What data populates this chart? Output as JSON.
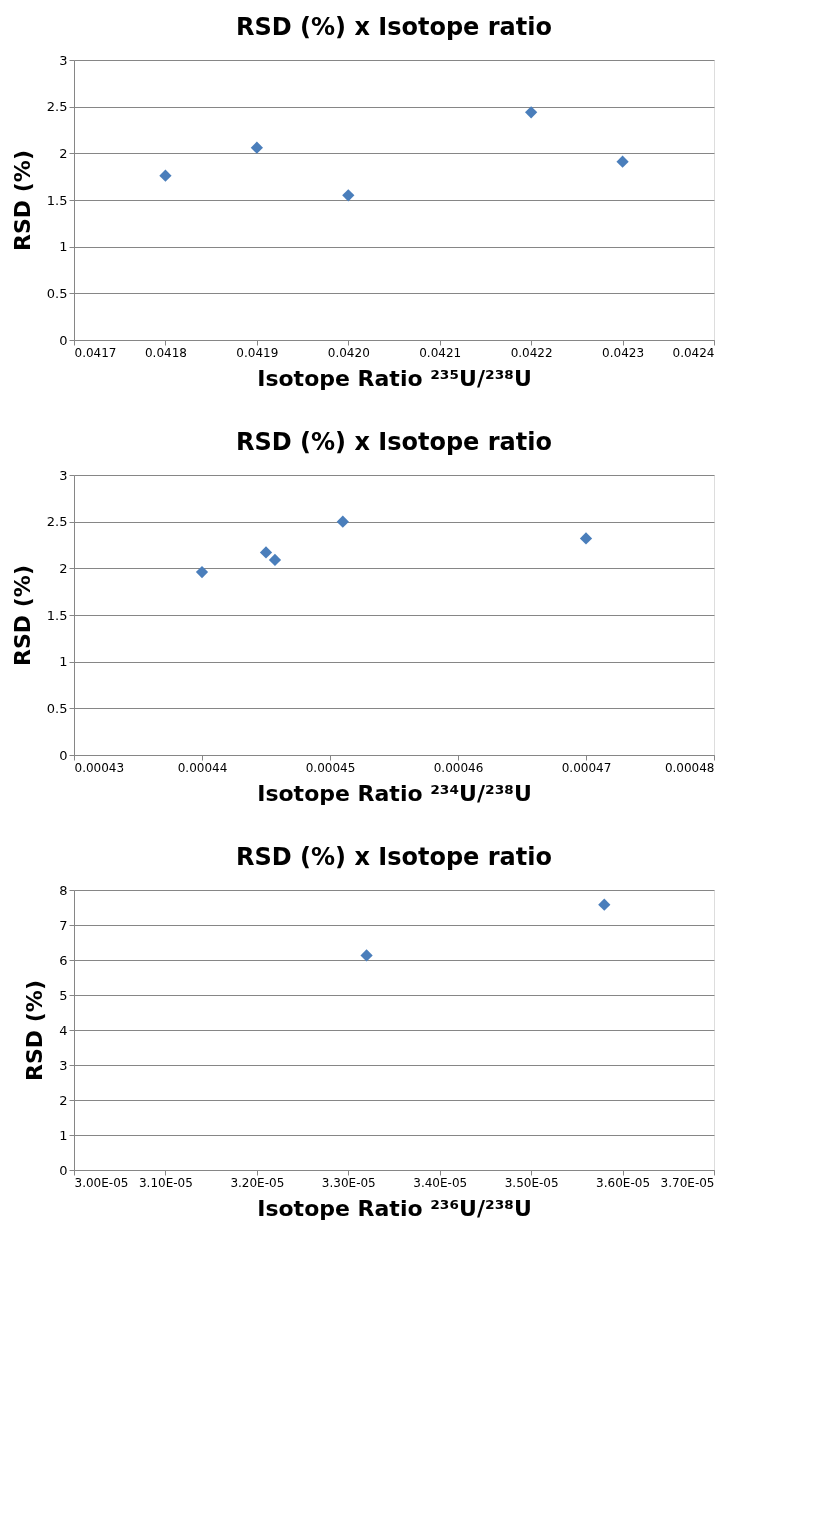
{
  "chart_data": [
    {
      "type": "scatter",
      "title": "RSD (%) x Isotope ratio",
      "xlabel": "Isotope Ratio ²³⁵U/²³⁸U",
      "ylabel": "RSD (%)",
      "x": [
        0.0418,
        0.0419,
        0.042,
        0.0422,
        0.0423
      ],
      "series": [
        {
          "color": "#4a7ebb",
          "values": [
            1.76,
            2.06,
            1.55,
            2.44,
            1.91
          ]
        }
      ],
      "xlim": [
        0.0417,
        0.0424
      ],
      "xticks": [
        {
          "value": 0.0417,
          "label": "0.0417"
        },
        {
          "value": 0.0418,
          "label": "0.0418"
        },
        {
          "value": 0.0419,
          "label": "0.0419"
        },
        {
          "value": 0.042,
          "label": "0.0420"
        },
        {
          "value": 0.0421,
          "label": "0.0421"
        },
        {
          "value": 0.0422,
          "label": "0.0422"
        },
        {
          "value": 0.0423,
          "label": "0.0423"
        },
        {
          "value": 0.0424,
          "label": "0.0424"
        }
      ],
      "ylim": [
        0,
        3
      ],
      "yticks": [
        0,
        0.5,
        1,
        1.5,
        2,
        2.5,
        3
      ],
      "grid": "y",
      "marker": "diamond"
    },
    {
      "type": "scatter",
      "title": "RSD (%) x Isotope ratio",
      "xlabel": "Isotope Ratio ²³⁴U/²³⁸U",
      "ylabel": "RSD (%)",
      "x": [
        0.00044,
        0.000445,
        0.0004457,
        0.000451,
        0.00047
      ],
      "series": [
        {
          "color": "#4a7ebb",
          "values": [
            1.96,
            2.17,
            2.09,
            2.5,
            2.32
          ]
        }
      ],
      "xlim": [
        0.00043,
        0.00048
      ],
      "xticks": [
        {
          "value": 0.00043,
          "label": "0.00043"
        },
        {
          "value": 0.00044,
          "label": "0.00044"
        },
        {
          "value": 0.00045,
          "label": "0.00045"
        },
        {
          "value": 0.00046,
          "label": "0.00046"
        },
        {
          "value": 0.00047,
          "label": "0.00047"
        },
        {
          "value": 0.00048,
          "label": "0.00048"
        }
      ],
      "ylim": [
        0,
        3
      ],
      "yticks": [
        0,
        0.5,
        1,
        1.5,
        2,
        2.5,
        3
      ],
      "grid": "y",
      "marker": "diamond"
    },
    {
      "type": "scatter",
      "title": "RSD (%) x Isotope ratio",
      "xlabel": "Isotope Ratio ²³⁶U/²³⁸U",
      "ylabel": "RSD (%)",
      "x": [
        3.32e-05,
        3.58e-05
      ],
      "series": [
        {
          "color": "#4a7ebb",
          "values": [
            6.13,
            7.58
          ]
        }
      ],
      "xlim": [
        3e-05,
        3.7e-05
      ],
      "xticks": [
        {
          "value": 3e-05,
          "label": "3.00E-05"
        },
        {
          "value": 3.1e-05,
          "label": "3.10E-05"
        },
        {
          "value": 3.2e-05,
          "label": "3.20E-05"
        },
        {
          "value": 3.3e-05,
          "label": "3.30E-05"
        },
        {
          "value": 3.4e-05,
          "label": "3.40E-05"
        },
        {
          "value": 3.5e-05,
          "label": "3.50E-05"
        },
        {
          "value": 3.6e-05,
          "label": "3.60E-05"
        },
        {
          "value": 3.7e-05,
          "label": "3.70E-05"
        }
      ],
      "ylim": [
        0,
        8
      ],
      "yticks": [
        0,
        1,
        2,
        3,
        4,
        5,
        6,
        7,
        8
      ],
      "grid": "y",
      "marker": "diamond"
    }
  ]
}
